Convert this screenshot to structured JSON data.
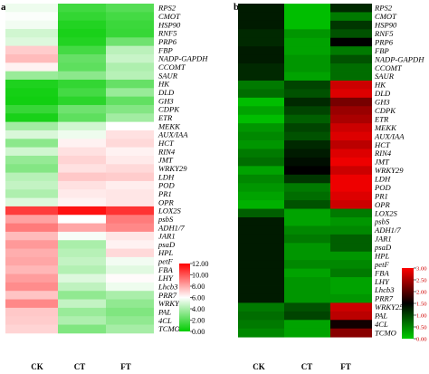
{
  "genes": [
    "RPS2",
    "CMOT",
    "HSP90",
    "RNF5",
    "PRP6",
    "FBP",
    "NADP-GAPDH",
    "CCOMT",
    "SAUR",
    "HK",
    "DLD",
    "GH3",
    "CDPK",
    "ETR",
    "MEKK",
    "AUX/IAA",
    "HCT",
    "RIN4",
    "JMT",
    "WRKY29",
    "LDH",
    "POD",
    "PR1",
    "OPR",
    "LOX2S",
    "psbS",
    "ADH1/7",
    "JAR1",
    "psaD",
    "HPL",
    "petF",
    "FBA",
    "LHY",
    "Lhcb3",
    "PRR7",
    "WRKY25",
    "PAL",
    "4CL",
    "TCMO"
  ],
  "columns": [
    "CK",
    "CT",
    "FT"
  ],
  "colors": {
    "low": "#00cc00",
    "mid_a": "#ffffff",
    "high_a": "#ff0000",
    "mid_b": "#000000",
    "high_b": "#ff0000"
  },
  "chart_data": [
    {
      "type": "heatmap",
      "panel_label": "a",
      "x": [
        "CK",
        "CT",
        "FT"
      ],
      "y_ref": "genes",
      "zlim": [
        0,
        12
      ],
      "colorscale": "green-white-red",
      "legend_ticks": [
        "12.00",
        "10.00",
        "8.00",
        "6.00",
        "4.00",
        "2.00",
        "0.00"
      ],
      "values": [
        [
          5.6,
          1.5,
          2.0
        ],
        [
          5.9,
          1.2,
          1.6
        ],
        [
          5.7,
          0.8,
          1.4
        ],
        [
          4.9,
          0.6,
          1.3
        ],
        [
          5.2,
          0.8,
          2.6
        ],
        [
          7.2,
          1.6,
          4.4
        ],
        [
          7.6,
          2.4,
          4.7
        ],
        [
          6.3,
          2.2,
          4.1
        ],
        [
          3.6,
          3.3,
          4.3
        ],
        [
          0.7,
          1.2,
          2.4
        ],
        [
          0.5,
          1.6,
          3.6
        ],
        [
          0.4,
          1.0,
          2.3
        ],
        [
          1.3,
          2.6,
          3.1
        ],
        [
          0.6,
          2.2,
          3.8
        ],
        [
          3.8,
          4.9,
          6.0
        ],
        [
          5.1,
          5.6,
          6.7
        ],
        [
          3.3,
          6.3,
          6.9
        ],
        [
          4.9,
          6.7,
          6.3
        ],
        [
          3.5,
          7.0,
          6.5
        ],
        [
          3.1,
          6.7,
          6.9
        ],
        [
          4.3,
          7.3,
          7.2
        ],
        [
          4.6,
          6.7,
          6.4
        ],
        [
          4.1,
          6.5,
          6.6
        ],
        [
          5.2,
          6.3,
          6.6
        ],
        [
          10.6,
          11.6,
          10.8
        ],
        [
          8.2,
          6.0,
          9.1
        ],
        [
          9.1,
          8.1,
          8.8
        ],
        [
          7.6,
          5.8,
          6.6
        ],
        [
          8.4,
          4.0,
          6.3
        ],
        [
          7.9,
          4.3,
          6.9
        ],
        [
          8.1,
          4.6,
          5.7
        ],
        [
          7.7,
          4.2,
          5.3
        ],
        [
          8.3,
          5.2,
          6.1
        ],
        [
          8.7,
          4.5,
          5.6
        ],
        [
          7.4,
          3.4,
          4.0
        ],
        [
          8.8,
          4.6,
          3.4
        ],
        [
          7.3,
          3.6,
          3.0
        ],
        [
          7.2,
          4.1,
          3.4
        ],
        [
          7.0,
          3.0,
          3.9
        ]
      ]
    },
    {
      "type": "heatmap",
      "panel_label": "b",
      "x": [
        "CK",
        "CT",
        "FT"
      ],
      "y_ref": "genes",
      "zlim": [
        0,
        3
      ],
      "colorscale": "green-black-red",
      "legend_ticks": [
        "3.00",
        "2.50",
        "2.00",
        "1.50",
        "1.00",
        "0.50",
        "0.00"
      ],
      "values": [
        [
          1.3,
          0.1,
          1.2
        ],
        [
          1.3,
          0.1,
          0.6
        ],
        [
          1.3,
          0.1,
          1.1
        ],
        [
          1.2,
          0.4,
          0.9
        ],
        [
          1.2,
          0.3,
          1.5
        ],
        [
          1.3,
          0.3,
          0.6
        ],
        [
          1.3,
          0.4,
          0.9
        ],
        [
          1.2,
          0.4,
          0.7
        ],
        [
          1.2,
          0.3,
          0.7
        ],
        [
          0.6,
          1.0,
          2.7
        ],
        [
          0.7,
          0.9,
          2.8
        ],
        [
          0.1,
          1.2,
          2.2
        ],
        [
          0.3,
          1.0,
          2.4
        ],
        [
          0.1,
          0.8,
          2.5
        ],
        [
          0.4,
          1.0,
          2.7
        ],
        [
          0.5,
          0.9,
          2.8
        ],
        [
          0.4,
          1.2,
          2.6
        ],
        [
          0.6,
          1.3,
          2.8
        ],
        [
          0.7,
          1.4,
          2.9
        ],
        [
          0.3,
          1.5,
          2.7
        ],
        [
          0.5,
          1.1,
          2.9
        ],
        [
          0.4,
          0.6,
          2.9
        ],
        [
          0.3,
          0.7,
          2.8
        ],
        [
          0.2,
          0.9,
          2.7
        ],
        [
          0.8,
          0.3,
          0.6
        ],
        [
          1.3,
          0.3,
          0.4
        ],
        [
          1.3,
          0.5,
          0.5
        ],
        [
          1.3,
          0.6,
          0.8
        ],
        [
          1.3,
          0.4,
          0.8
        ],
        [
          1.3,
          0.4,
          0.4
        ],
        [
          1.3,
          0.5,
          0.5
        ],
        [
          1.3,
          0.3,
          0.6
        ],
        [
          1.3,
          0.4,
          0.3
        ],
        [
          1.3,
          0.4,
          0.3
        ],
        [
          1.3,
          0.4,
          0.4
        ],
        [
          0.6,
          0.9,
          2.7
        ],
        [
          0.7,
          1.0,
          2.6
        ],
        [
          0.6,
          0.3,
          1.6
        ],
        [
          0.5,
          0.3,
          2.3
        ]
      ]
    }
  ]
}
